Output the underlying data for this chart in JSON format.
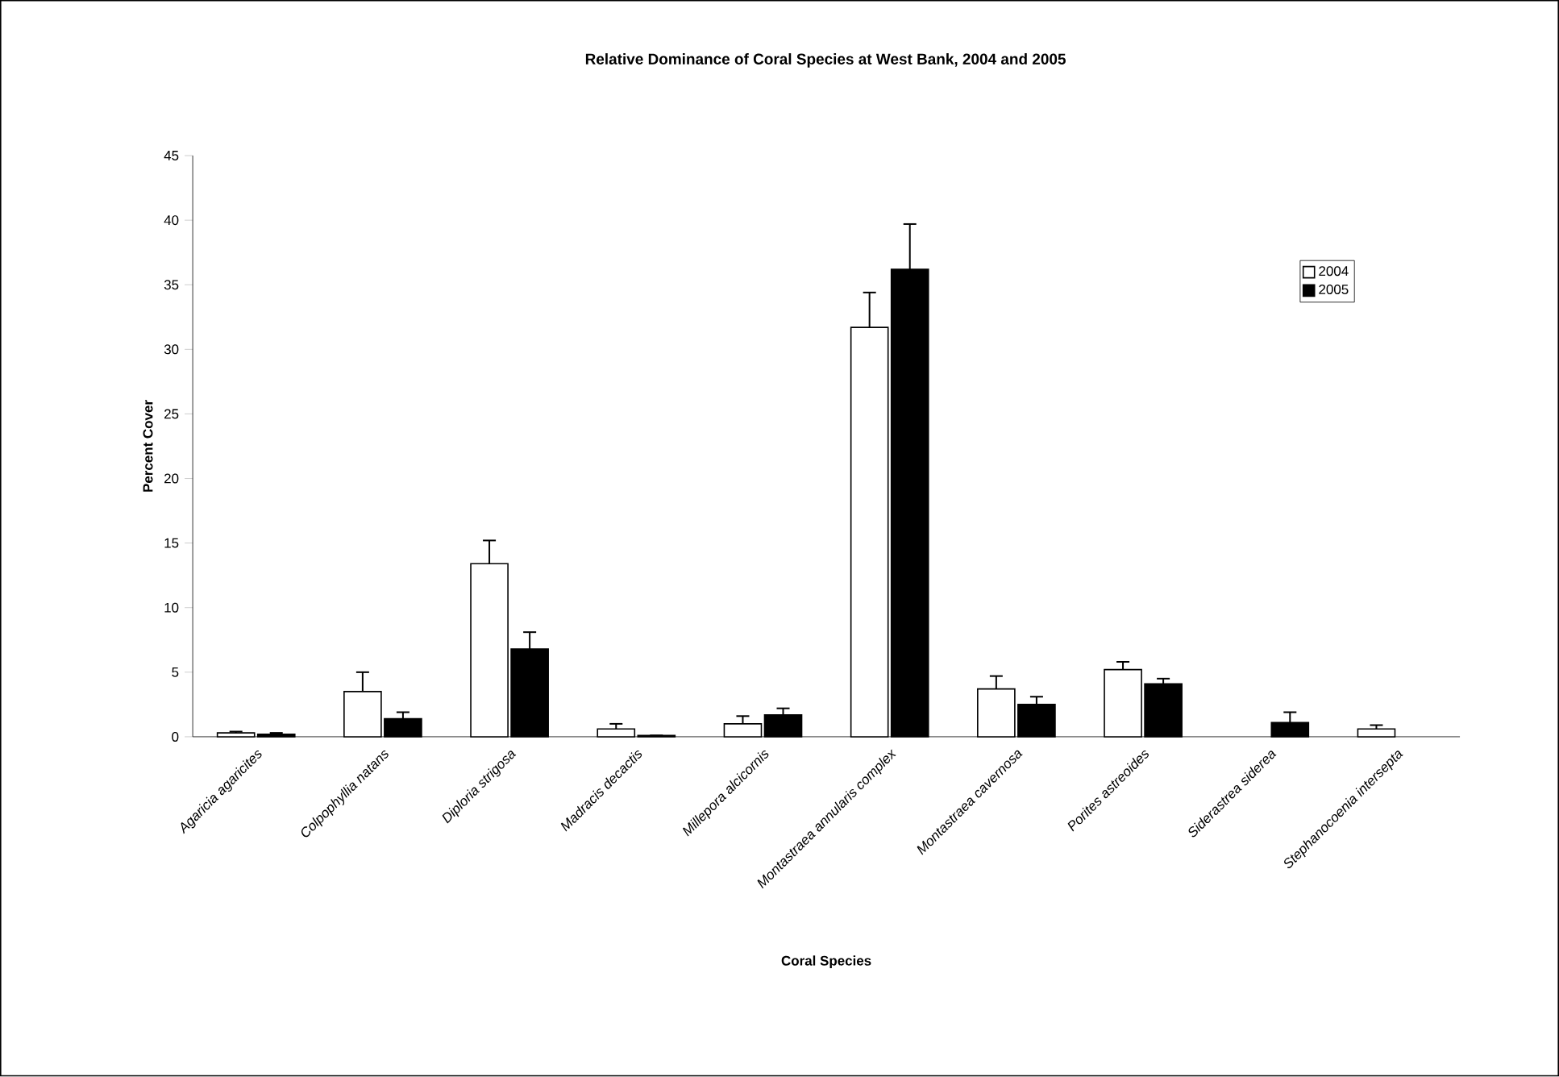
{
  "chart_data": {
    "type": "bar",
    "title": "Relative Dominance of Coral Species at West Bank, 2004 and 2005",
    "xlabel": "Coral Species",
    "ylabel": "Percent Cover",
    "categories": [
      "Agaricia agaricites",
      "Colpophyllia natans",
      "Diploria strigosa",
      "Madracis decactis",
      "Millepora alcicornis",
      "Montastraea annularis complex",
      "Montastraea cavernosa",
      "Porites astreoides",
      "Siderastrea siderea",
      "Stephanocoenia intersepta"
    ],
    "series": [
      {
        "name": "2004",
        "color": "#ffffff",
        "values": [
          0.3,
          3.5,
          13.4,
          0.6,
          1.0,
          31.7,
          3.7,
          5.2,
          null,
          0.6
        ],
        "errors": [
          0.1,
          1.5,
          1.8,
          0.4,
          0.6,
          2.7,
          1.0,
          0.6,
          null,
          0.3
        ]
      },
      {
        "name": "2005",
        "color": "#000000",
        "values": [
          0.2,
          1.4,
          6.8,
          0.1,
          1.7,
          36.2,
          2.5,
          4.1,
          1.1,
          null
        ],
        "errors": [
          0.1,
          0.5,
          1.3,
          null,
          0.5,
          3.5,
          0.6,
          0.4,
          0.8,
          null
        ]
      }
    ],
    "ylim": [
      0,
      45
    ],
    "yticks": [
      0,
      5,
      10,
      15,
      20,
      25,
      30,
      35,
      40,
      45
    ],
    "grid": false,
    "legend": "top right"
  }
}
